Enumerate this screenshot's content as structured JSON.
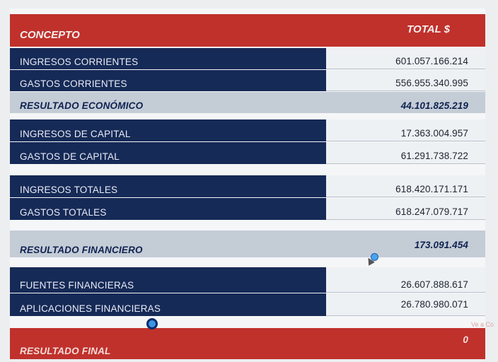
{
  "header": {
    "concept_label": "CONCEPTO",
    "total_label": "TOTAL $"
  },
  "rows": [
    {
      "label": "INGRESOS CORRIENTES",
      "value": "601.057.166.214"
    },
    {
      "label": "GASTOS CORRIENTES",
      "value": "556.955.340.995"
    },
    {
      "label": "RESULTADO ECONÓMICO",
      "value": "44.101.825.219"
    },
    {
      "label": "INGRESOS DE CAPITAL",
      "value": "17.363.004.957"
    },
    {
      "label": "GASTOS DE CAPITAL",
      "value": "61.291.738.722"
    },
    {
      "label": "INGRESOS TOTALES",
      "value": "618.420.171.171"
    },
    {
      "label": "GASTOS TOTALES",
      "value": "618.247.079.717"
    },
    {
      "label": "RESULTADO FINANCIERO",
      "value": "173.091.454"
    },
    {
      "label": "FUENTES FINANCIERAS",
      "value": "26.607.888.617"
    },
    {
      "label": "APLICACIONES FINANCIERAS",
      "value": "26.780.980.071"
    },
    {
      "label": "RESULTADO FINAL",
      "value": "0"
    }
  ],
  "watermark": "Ve a Co"
}
